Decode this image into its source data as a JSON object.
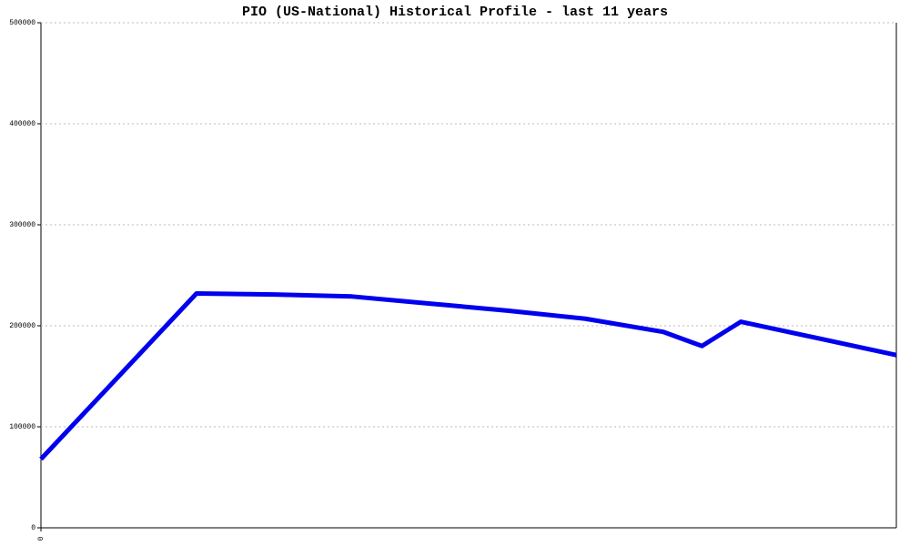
{
  "chart_data": {
    "type": "line",
    "title": "PIO (US-National) Historical Profile - last 11 years",
    "x": [
      0,
      2,
      3,
      4,
      5,
      6,
      7,
      8,
      8.5,
      9,
      11
    ],
    "series": [
      {
        "color": "#0000ee",
        "values": [
          68000,
          232000,
          231000,
          229000,
          222000,
          215000,
          207000,
          194000,
          180000,
          204000,
          171000
        ]
      }
    ],
    "xlim": [
      0,
      11
    ],
    "xticks": [
      0
    ],
    "ylim": [
      0,
      500000
    ],
    "yticks": [
      0,
      100000,
      200000,
      300000,
      400000,
      500000
    ],
    "grid": true
  }
}
